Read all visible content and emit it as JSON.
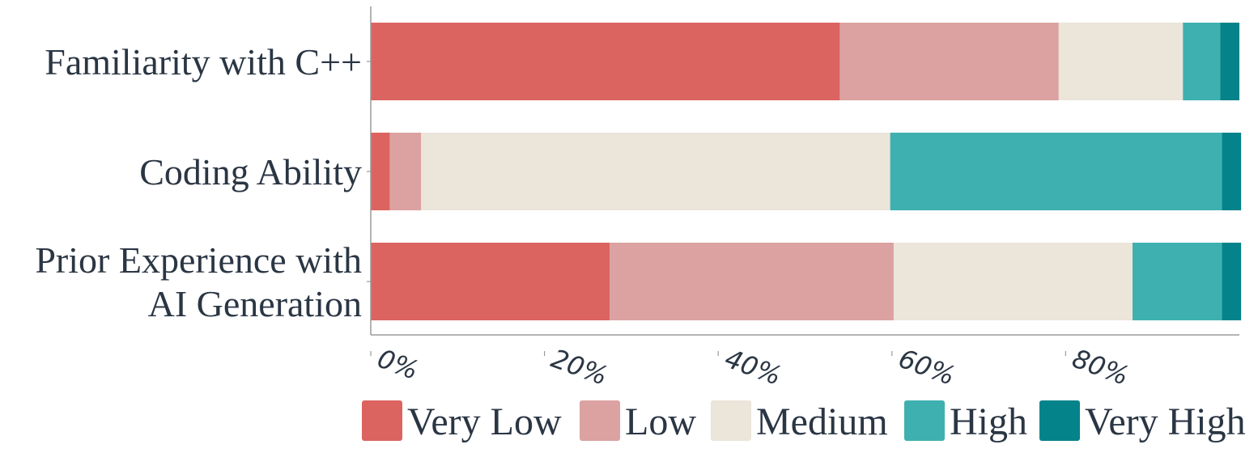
{
  "chart_data": {
    "type": "bar",
    "orientation": "horizontal",
    "stacked": true,
    "title": "",
    "xlabel": "",
    "ylabel": "",
    "categories": [
      "Familiarity with C++",
      "Coding Ability",
      "Prior Experience with\nAI Generation"
    ],
    "series": [
      {
        "name": "Very Low",
        "color": "#DB6461",
        "values": [
          54,
          2.2,
          27.5
        ]
      },
      {
        "name": "Low",
        "color": "#DBA2A1",
        "values": [
          25.2,
          3.6,
          32.7
        ]
      },
      {
        "name": "Medium",
        "color": "#EBE5DA",
        "values": [
          14.3,
          54,
          27.5
        ]
      },
      {
        "name": "High",
        "color": "#3EB0AF",
        "values": [
          4.3,
          38.2,
          10.3
        ]
      },
      {
        "name": "Very High",
        "color": "#05838A",
        "values": [
          2.2,
          2.2,
          2.2
        ]
      }
    ],
    "xlim": [
      0,
      100
    ],
    "xticks": [
      0,
      20,
      40,
      60,
      80
    ],
    "xtick_labels": [
      "0%",
      "20%",
      "40%",
      "60%",
      "80%"
    ],
    "grid": false,
    "legend_position": "bottom"
  },
  "colors": {
    "text": "#2B3644",
    "axis": "#9A9A9A"
  }
}
